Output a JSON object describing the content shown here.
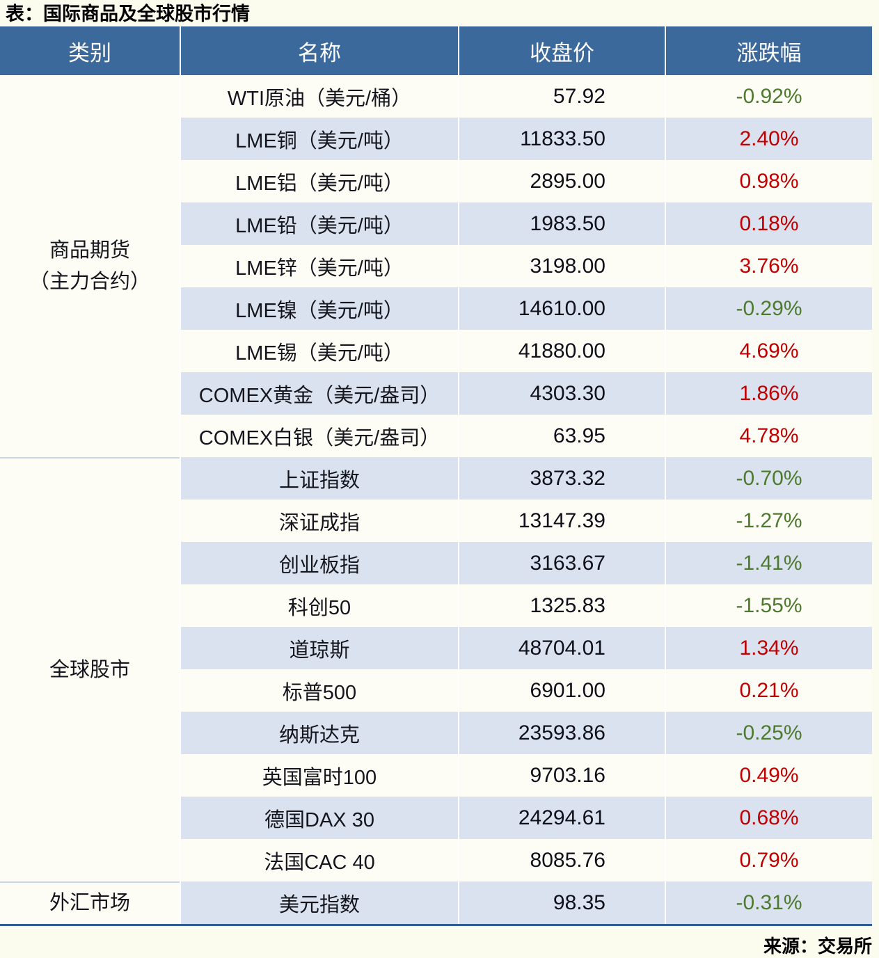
{
  "colors": {
    "header_bg": "#3C699B",
    "row_shade": "#D9E2EE",
    "row_light": "#FDFDF6",
    "up_red": "#C00000",
    "down_green": "#4E7A2E",
    "bottom_border": "#2E5E92"
  },
  "chart_data": {
    "type": "table",
    "title": "表：国际商品及全球股市行情",
    "source": "来源：交易所",
    "columns": [
      "类别",
      "名称",
      "收盘价",
      "涨跌幅"
    ],
    "sections": [
      {
        "category": "商品期货（主力合约）",
        "category_lines": [
          "商品期货",
          "（主力合约）"
        ],
        "rows": [
          {
            "name": "WTI原油（美元/桶）",
            "close": "57.92",
            "change": "-0.92%",
            "direction": "down"
          },
          {
            "name": "LME铜（美元/吨）",
            "close": "11833.50",
            "change": "2.40%",
            "direction": "up"
          },
          {
            "name": "LME铝（美元/吨）",
            "close": "2895.00",
            "change": "0.98%",
            "direction": "up"
          },
          {
            "name": "LME铅（美元/吨）",
            "close": "1983.50",
            "change": "0.18%",
            "direction": "up"
          },
          {
            "name": "LME锌（美元/吨）",
            "close": "3198.00",
            "change": "3.76%",
            "direction": "up"
          },
          {
            "name": "LME镍（美元/吨）",
            "close": "14610.00",
            "change": "-0.29%",
            "direction": "down"
          },
          {
            "name": "LME锡（美元/吨）",
            "close": "41880.00",
            "change": "4.69%",
            "direction": "up"
          },
          {
            "name": "COMEX黄金（美元/盎司）",
            "close": "4303.30",
            "change": "1.86%",
            "direction": "up"
          },
          {
            "name": "COMEX白银（美元/盎司）",
            "close": "63.95",
            "change": "4.78%",
            "direction": "up"
          }
        ]
      },
      {
        "category": "全球股市",
        "category_lines": [
          "全球股市"
        ],
        "rows": [
          {
            "name": "上证指数",
            "close": "3873.32",
            "change": "-0.70%",
            "direction": "down"
          },
          {
            "name": "深证成指",
            "close": "13147.39",
            "change": "-1.27%",
            "direction": "down"
          },
          {
            "name": "创业板指",
            "close": "3163.67",
            "change": "-1.41%",
            "direction": "down"
          },
          {
            "name": "科创50",
            "close": "1325.83",
            "change": "-1.55%",
            "direction": "down"
          },
          {
            "name": "道琼斯",
            "close": "48704.01",
            "change": "1.34%",
            "direction": "up"
          },
          {
            "name": "标普500",
            "close": "6901.00",
            "change": "0.21%",
            "direction": "up"
          },
          {
            "name": "纳斯达克",
            "close": "23593.86",
            "change": "-0.25%",
            "direction": "down"
          },
          {
            "name": "英国富时100",
            "close": "9703.16",
            "change": "0.49%",
            "direction": "up"
          },
          {
            "name": "德国DAX 30",
            "close": "24294.61",
            "change": "0.68%",
            "direction": "up"
          },
          {
            "name": "法国CAC 40",
            "close": "8085.76",
            "change": "0.79%",
            "direction": "up"
          }
        ]
      },
      {
        "category": "外汇市场",
        "category_lines": [
          "外汇市场"
        ],
        "rows": [
          {
            "name": "美元指数",
            "close": "98.35",
            "change": "-0.31%",
            "direction": "down"
          }
        ]
      }
    ]
  }
}
